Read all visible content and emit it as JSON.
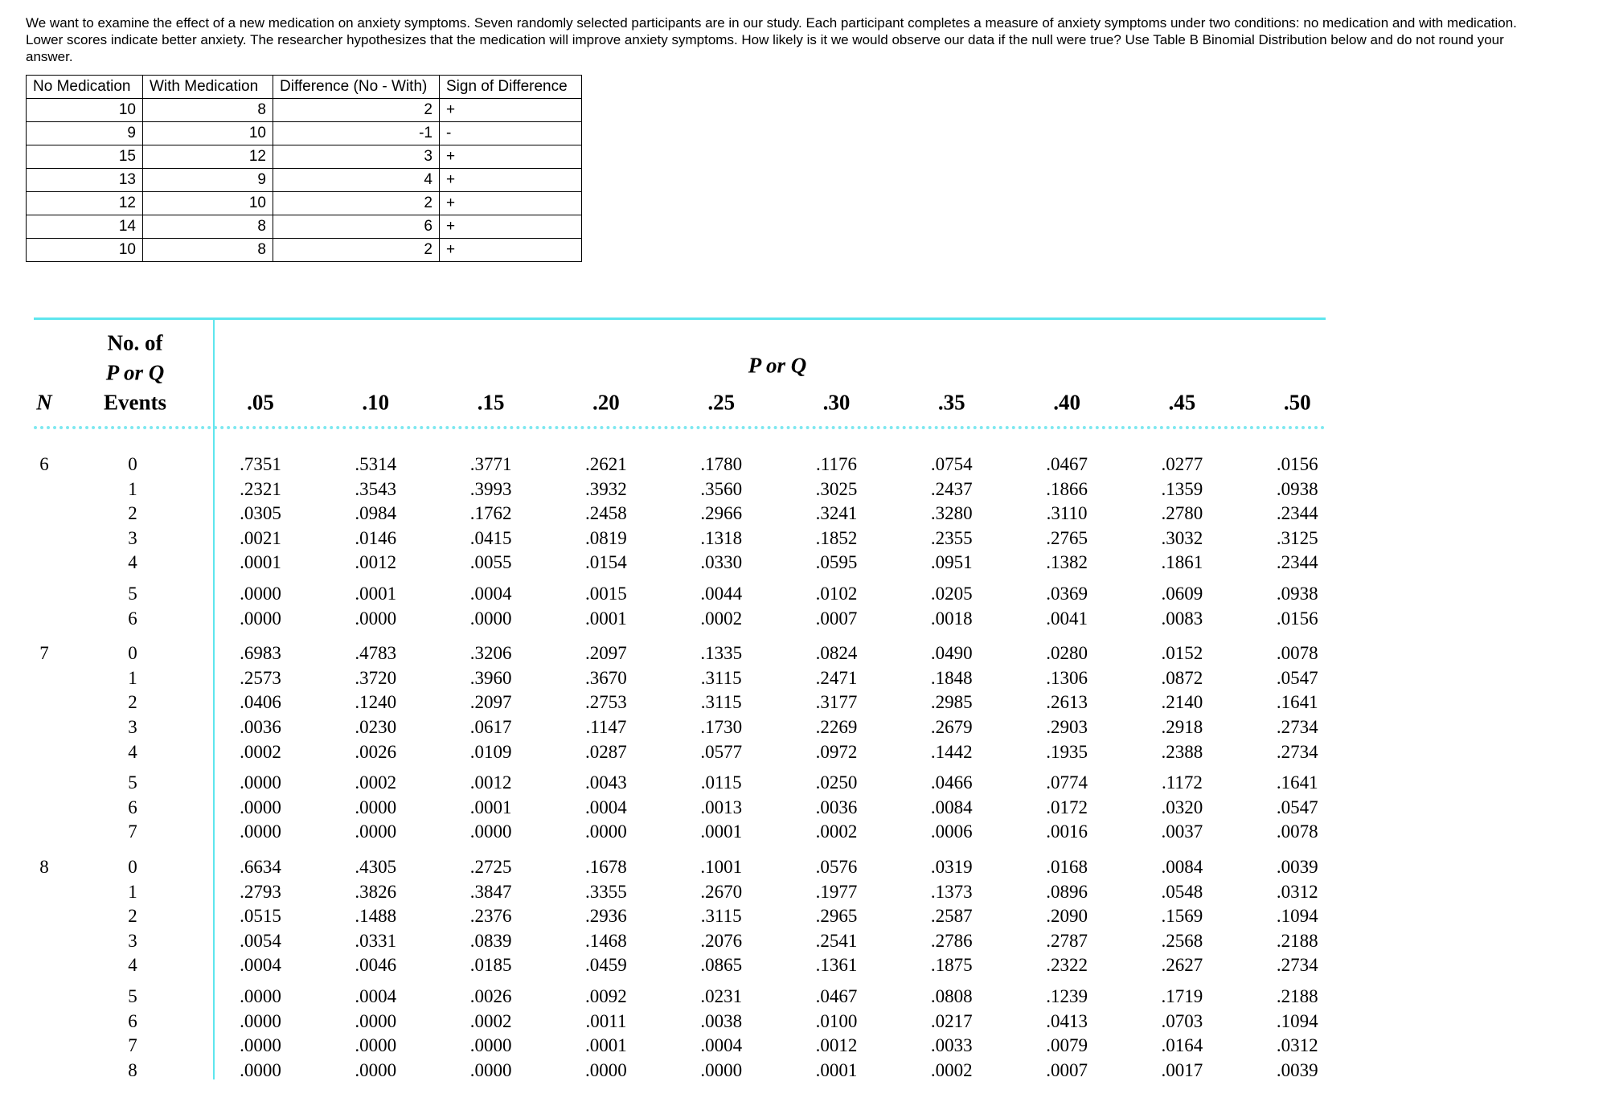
{
  "question": "We want to examine the effect of a new medication on anxiety symptoms.  Seven randomly selected participants are in our study.  Each participant completes a measure of anxiety symptoms under two conditions: no medication and with medication.  Lower scores indicate better anxiety. The researcher hypothesizes that the medication will improve anxiety symptoms. How likely is it we would observe our data if the null were true?  Use Table B Binomial Distribution below and do not round your answer.",
  "data_table": {
    "headers": [
      "No Medication",
      "With Medication",
      "Difference (No - With)",
      "Sign of Difference"
    ],
    "rows": [
      [
        10,
        8,
        2,
        "+"
      ],
      [
        9,
        10,
        -1,
        "-"
      ],
      [
        15,
        12,
        3,
        "+"
      ],
      [
        13,
        9,
        4,
        "+"
      ],
      [
        12,
        10,
        2,
        "+"
      ],
      [
        14,
        8,
        6,
        "+"
      ],
      [
        10,
        8,
        2,
        "+"
      ]
    ]
  },
  "binomial_table": {
    "n_header": "N",
    "events_header": [
      "No. of",
      "P or Q",
      "Events"
    ],
    "p_header": "P or Q",
    "p_columns": [
      ".05",
      ".10",
      ".15",
      ".20",
      ".25",
      ".30",
      ".35",
      ".40",
      ".45",
      ".50"
    ],
    "groups": [
      {
        "n": "6",
        "rows": [
          {
            "k": "0",
            "p": [
              ".7351",
              ".5314",
              ".3771",
              ".2621",
              ".1780",
              ".1176",
              ".0754",
              ".0467",
              ".0277",
              ".0156"
            ]
          },
          {
            "k": "1",
            "p": [
              ".2321",
              ".3543",
              ".3993",
              ".3932",
              ".3560",
              ".3025",
              ".2437",
              ".1866",
              ".1359",
              ".0938"
            ]
          },
          {
            "k": "2",
            "p": [
              ".0305",
              ".0984",
              ".1762",
              ".2458",
              ".2966",
              ".3241",
              ".3280",
              ".3110",
              ".2780",
              ".2344"
            ]
          },
          {
            "k": "3",
            "p": [
              ".0021",
              ".0146",
              ".0415",
              ".0819",
              ".1318",
              ".1852",
              ".2355",
              ".2765",
              ".3032",
              ".3125"
            ]
          },
          {
            "k": "4",
            "p": [
              ".0001",
              ".0012",
              ".0055",
              ".0154",
              ".0330",
              ".0595",
              ".0951",
              ".1382",
              ".1861",
              ".2344"
            ]
          },
          {
            "k": "5",
            "p": [
              ".0000",
              ".0001",
              ".0004",
              ".0015",
              ".0044",
              ".0102",
              ".0205",
              ".0369",
              ".0609",
              ".0938"
            ]
          },
          {
            "k": "6",
            "p": [
              ".0000",
              ".0000",
              ".0000",
              ".0001",
              ".0002",
              ".0007",
              ".0018",
              ".0041",
              ".0083",
              ".0156"
            ]
          }
        ]
      },
      {
        "n": "7",
        "rows": [
          {
            "k": "0",
            "p": [
              ".6983",
              ".4783",
              ".3206",
              ".2097",
              ".1335",
              ".0824",
              ".0490",
              ".0280",
              ".0152",
              ".0078"
            ]
          },
          {
            "k": "1",
            "p": [
              ".2573",
              ".3720",
              ".3960",
              ".3670",
              ".3115",
              ".2471",
              ".1848",
              ".1306",
              ".0872",
              ".0547"
            ]
          },
          {
            "k": "2",
            "p": [
              ".0406",
              ".1240",
              ".2097",
              ".2753",
              ".3115",
              ".3177",
              ".2985",
              ".2613",
              ".2140",
              ".1641"
            ]
          },
          {
            "k": "3",
            "p": [
              ".0036",
              ".0230",
              ".0617",
              ".1147",
              ".1730",
              ".2269",
              ".2679",
              ".2903",
              ".2918",
              ".2734"
            ]
          },
          {
            "k": "4",
            "p": [
              ".0002",
              ".0026",
              ".0109",
              ".0287",
              ".0577",
              ".0972",
              ".1442",
              ".1935",
              ".2388",
              ".2734"
            ]
          },
          {
            "k": "5",
            "p": [
              ".0000",
              ".0002",
              ".0012",
              ".0043",
              ".0115",
              ".0250",
              ".0466",
              ".0774",
              ".1172",
              ".1641"
            ]
          },
          {
            "k": "6",
            "p": [
              ".0000",
              ".0000",
              ".0001",
              ".0004",
              ".0013",
              ".0036",
              ".0084",
              ".0172",
              ".0320",
              ".0547"
            ]
          },
          {
            "k": "7",
            "p": [
              ".0000",
              ".0000",
              ".0000",
              ".0000",
              ".0001",
              ".0002",
              ".0006",
              ".0016",
              ".0037",
              ".0078"
            ]
          }
        ]
      },
      {
        "n": "8",
        "rows": [
          {
            "k": "0",
            "p": [
              ".6634",
              ".4305",
              ".2725",
              ".1678",
              ".1001",
              ".0576",
              ".0319",
              ".0168",
              ".0084",
              ".0039"
            ]
          },
          {
            "k": "1",
            "p": [
              ".2793",
              ".3826",
              ".3847",
              ".3355",
              ".2670",
              ".1977",
              ".1373",
              ".0896",
              ".0548",
              ".0312"
            ]
          },
          {
            "k": "2",
            "p": [
              ".0515",
              ".1488",
              ".2376",
              ".2936",
              ".3115",
              ".2965",
              ".2587",
              ".2090",
              ".1569",
              ".1094"
            ]
          },
          {
            "k": "3",
            "p": [
              ".0054",
              ".0331",
              ".0839",
              ".1468",
              ".2076",
              ".2541",
              ".2786",
              ".2787",
              ".2568",
              ".2188"
            ]
          },
          {
            "k": "4",
            "p": [
              ".0004",
              ".0046",
              ".0185",
              ".0459",
              ".0865",
              ".1361",
              ".1875",
              ".2322",
              ".2627",
              ".2734"
            ]
          },
          {
            "k": "5",
            "p": [
              ".0000",
              ".0004",
              ".0026",
              ".0092",
              ".0231",
              ".0467",
              ".0808",
              ".1239",
              ".1719",
              ".2188"
            ]
          },
          {
            "k": "6",
            "p": [
              ".0000",
              ".0000",
              ".0002",
              ".0011",
              ".0038",
              ".0100",
              ".0217",
              ".0413",
              ".0703",
              ".1094"
            ]
          },
          {
            "k": "7",
            "p": [
              ".0000",
              ".0000",
              ".0000",
              ".0001",
              ".0004",
              ".0012",
              ".0033",
              ".0079",
              ".0164",
              ".0312"
            ]
          },
          {
            "k": "8",
            "p": [
              ".0000",
              ".0000",
              ".0000",
              ".0000",
              ".0000",
              ".0001",
              ".0002",
              ".0007",
              ".0017",
              ".0039"
            ]
          }
        ]
      }
    ]
  }
}
